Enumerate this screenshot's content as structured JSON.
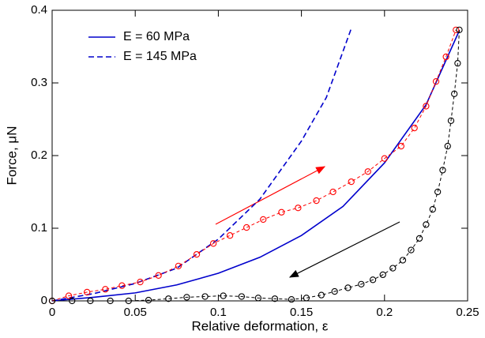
{
  "chart_data": {
    "type": "line",
    "x_label": "Relative deformation, ε",
    "y_label": "Force, μN",
    "xlim": [
      0,
      0.25
    ],
    "ylim": [
      0,
      0.4
    ],
    "xticks": [
      0,
      0.05,
      0.1,
      0.15,
      0.2,
      0.25
    ],
    "yticks": [
      0,
      0.1,
      0.2,
      0.3,
      0.4
    ],
    "legend_position": "upper left",
    "series": [
      {
        "name": "E = 60 MPa",
        "color": "#0000cc",
        "line_style": "solid",
        "x": [
          0,
          0.025,
          0.05,
          0.075,
          0.1,
          0.125,
          0.15,
          0.175,
          0.2,
          0.225,
          0.245
        ],
        "values": [
          0,
          0.005,
          0.011,
          0.022,
          0.038,
          0.06,
          0.09,
          0.13,
          0.19,
          0.27,
          0.372
        ]
      },
      {
        "name": "E = 145 MPa",
        "color": "#0000cc",
        "line_style": "dashed",
        "x": [
          0,
          0.025,
          0.05,
          0.075,
          0.1,
          0.125,
          0.15,
          0.165,
          0.18
        ],
        "values": [
          0,
          0.01,
          0.024,
          0.045,
          0.085,
          0.14,
          0.22,
          0.28,
          0.375
        ]
      },
      {
        "color": "#ff0000",
        "line_style": "dashed",
        "marker": "circle",
        "x": [
          0,
          0.01,
          0.021,
          0.032,
          0.042,
          0.053,
          0.064,
          0.076,
          0.087,
          0.097,
          0.107,
          0.117,
          0.127,
          0.138,
          0.148,
          0.159,
          0.169,
          0.18,
          0.19,
          0.2,
          0.21,
          0.218,
          0.225,
          0.231,
          0.237,
          0.243
        ],
        "values": [
          0,
          0.007,
          0.012,
          0.016,
          0.021,
          0.026,
          0.035,
          0.048,
          0.064,
          0.079,
          0.09,
          0.101,
          0.112,
          0.122,
          0.128,
          0.138,
          0.15,
          0.164,
          0.178,
          0.196,
          0.213,
          0.238,
          0.268,
          0.302,
          0.336,
          0.373
        ]
      },
      {
        "color": "#000000",
        "line_style": "dashed",
        "marker": "circle",
        "x": [
          0.245,
          0.244,
          0.242,
          0.24,
          0.238,
          0.235,
          0.232,
          0.229,
          0.225,
          0.221,
          0.216,
          0.211,
          0.205,
          0.199,
          0.193,
          0.186,
          0.178,
          0.17,
          0.162,
          0.153,
          0.144,
          0.134,
          0.124,
          0.114,
          0.103,
          0.092,
          0.081,
          0.07,
          0.058,
          0.046,
          0.035,
          0.023,
          0.012,
          0
        ],
        "values": [
          0.373,
          0.327,
          0.285,
          0.248,
          0.213,
          0.18,
          0.15,
          0.126,
          0.105,
          0.086,
          0.07,
          0.056,
          0.045,
          0.036,
          0.029,
          0.023,
          0.018,
          0.013,
          0.008,
          0.004,
          0.002,
          0.003,
          0.004,
          0.006,
          0.007,
          0.006,
          0.005,
          0.003,
          0.001,
          0,
          0,
          0,
          0,
          0
        ]
      }
    ]
  }
}
